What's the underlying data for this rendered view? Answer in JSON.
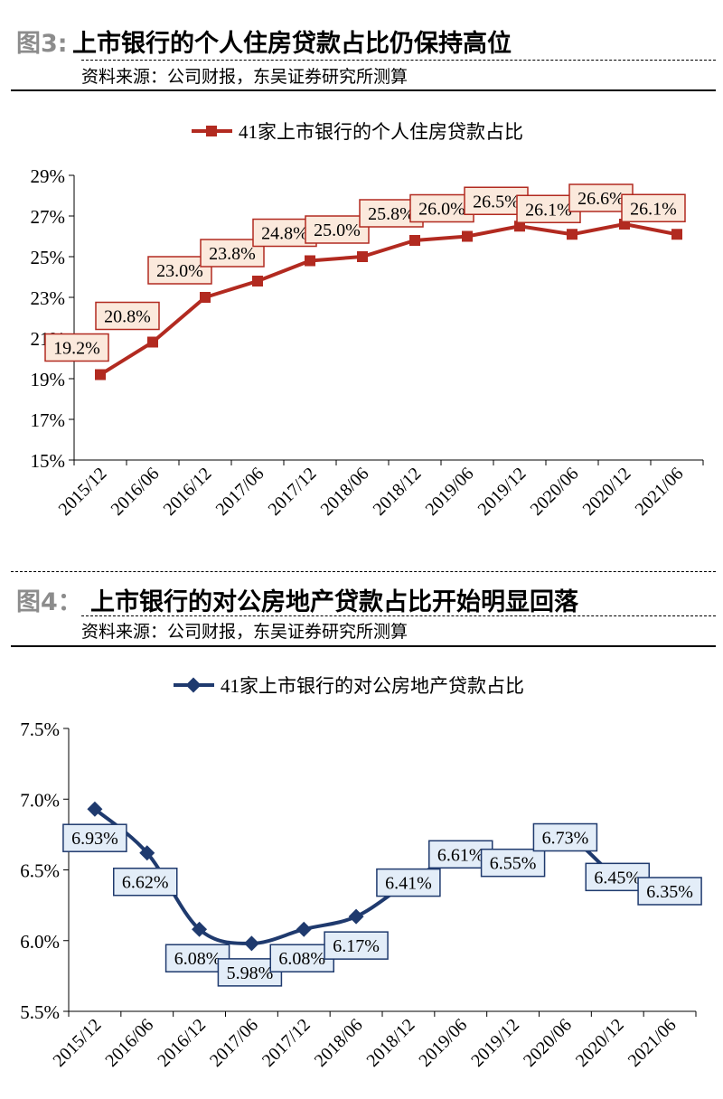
{
  "figures": [
    {
      "number": "图3:",
      "title": "上市银行的个人住房贷款占比仍保持高位",
      "source": "资料来源：公司财报，东吴证券研究所测算"
    },
    {
      "number": "图4：",
      "title": "上市银行的对公房地产贷款占比开始明显回落",
      "source": "资料来源：公司财报，东吴证券研究所测算"
    }
  ],
  "chart_data": [
    {
      "type": "line",
      "title": "",
      "legend": "41家上市银行的个人住房贷款占比",
      "legend_position": "top-center",
      "categories": [
        "2015/12",
        "2016/06",
        "2016/12",
        "2017/06",
        "2017/12",
        "2018/06",
        "2018/12",
        "2019/06",
        "2019/12",
        "2020/06",
        "2020/12",
        "2021/06"
      ],
      "series": [
        {
          "name": "41家上市银行的个人住房贷款占比",
          "values": [
            19.2,
            20.8,
            23.0,
            23.8,
            24.8,
            25.0,
            25.8,
            26.0,
            26.5,
            26.1,
            26.6,
            26.1
          ]
        }
      ],
      "data_labels": [
        "19.2%",
        "20.8%",
        "23.0%",
        "23.8%",
        "24.8%",
        "25.0%",
        "25.8%",
        "26.0%",
        "26.5%",
        "26.1%",
        "26.6%",
        "26.1%"
      ],
      "y_ticks": [
        15,
        17,
        19,
        21,
        23,
        25,
        27,
        29
      ],
      "y_tick_labels": [
        "15%",
        "17%",
        "19%",
        "21%",
        "23%",
        "25%",
        "27%",
        "29%"
      ],
      "ylim": [
        15,
        29
      ],
      "line_style": "straight",
      "marker": "square",
      "color": "#b22a20",
      "label_fill": "#fbe9dc",
      "grid": false
    },
    {
      "type": "line",
      "title": "",
      "legend": "41家上市银行的对公房地产贷款占比",
      "legend_position": "top-center",
      "categories": [
        "2015/12",
        "2016/06",
        "2016/12",
        "2017/06",
        "2017/12",
        "2018/06",
        "2018/12",
        "2019/06",
        "2019/12",
        "2020/06",
        "2020/12",
        "2021/06"
      ],
      "series": [
        {
          "name": "41家上市银行的对公房地产贷款占比",
          "values": [
            6.93,
            6.62,
            6.08,
            5.98,
            6.08,
            6.17,
            6.41,
            6.61,
            6.55,
            6.73,
            6.45,
            6.35
          ]
        }
      ],
      "data_labels": [
        "6.93%",
        "6.62%",
        "6.08%",
        "5.98%",
        "6.08%",
        "6.17%",
        "6.41%",
        "6.61%",
        "6.55%",
        "6.73%",
        "6.45%",
        "6.35%"
      ],
      "y_ticks": [
        5.5,
        6.0,
        6.5,
        7.0,
        7.5
      ],
      "y_tick_labels": [
        "5.5%",
        "6.0%",
        "6.5%",
        "7.0%",
        "7.5%"
      ],
      "ylim": [
        5.5,
        7.5
      ],
      "line_style": "smooth",
      "marker": "diamond",
      "color": "#1f3a6e",
      "label_fill": "#e3edf8",
      "grid": false
    }
  ]
}
